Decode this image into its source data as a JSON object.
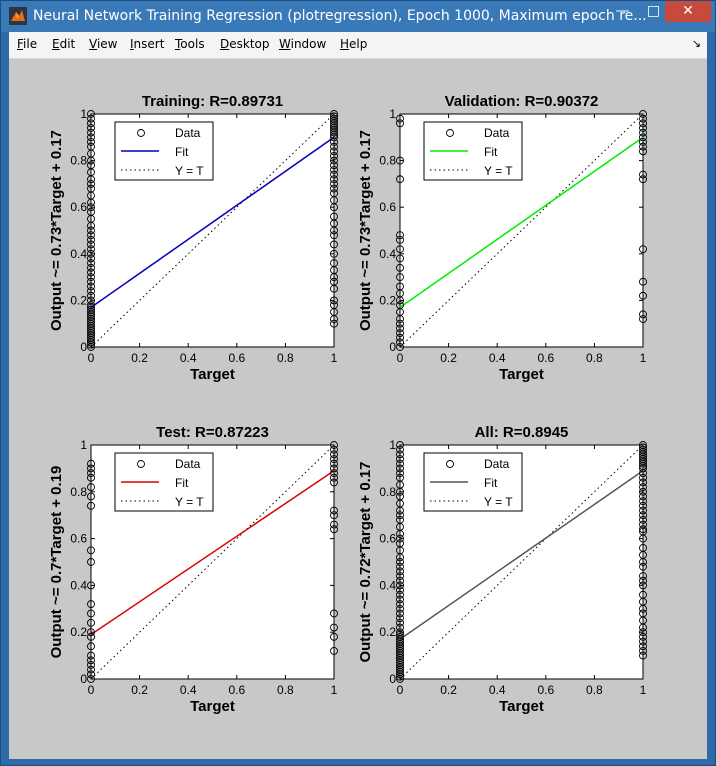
{
  "window": {
    "title": "Neural Network Training Regression (plotregression), Epoch 1000, Maximum epoch re...",
    "min_icon": "minimize-icon",
    "max_icon": "maximize-icon",
    "close_icon": "close-icon"
  },
  "menu": {
    "items": [
      {
        "label": "File",
        "key": "F",
        "rest": "ile"
      },
      {
        "label": "Edit",
        "key": "E",
        "rest": "dit"
      },
      {
        "label": "View",
        "key": "V",
        "rest": "iew"
      },
      {
        "label": "Insert",
        "key": "I",
        "rest": "nsert"
      },
      {
        "label": "Tools",
        "key": "T",
        "rest": "ools"
      },
      {
        "label": "Desktop",
        "key": "D",
        "rest": "esktop"
      },
      {
        "label": "Window",
        "key": "W",
        "rest": "indow"
      },
      {
        "label": "Help",
        "key": "H",
        "rest": "elp"
      }
    ]
  },
  "colors": {
    "training_fit": "#0000bf",
    "validation_fit": "#00ee00",
    "test_fit": "#dd0000",
    "all_fit": "#555555"
  },
  "chart_data": [
    {
      "type": "scatter",
      "title": "Training: R=0.89731",
      "xlabel": "Target",
      "ylabel": "Output ~= 0.73*Target + 0.17",
      "xlim": [
        0,
        1
      ],
      "ylim": [
        0,
        1
      ],
      "xticks": [
        "0",
        "0.2",
        "0.4",
        "0.6",
        "0.8",
        "1"
      ],
      "yticks": [
        "0",
        "0.2",
        "0.4",
        "0.6",
        "0.8",
        "1"
      ],
      "legend": [
        "Data",
        "Fit",
        "Y = T"
      ],
      "legend_position": "top-left",
      "fit_color": "#0000bf",
      "fit": {
        "slope": 0.73,
        "intercept": 0.17
      },
      "series": [
        {
          "x": 0,
          "y": [
            0.0,
            0.01,
            0.02,
            0.03,
            0.04,
            0.05,
            0.06,
            0.07,
            0.08,
            0.09,
            0.1,
            0.11,
            0.12,
            0.13,
            0.14,
            0.15,
            0.16,
            0.17,
            0.18,
            0.2,
            0.22,
            0.24,
            0.26,
            0.28,
            0.3,
            0.32,
            0.34,
            0.36,
            0.38,
            0.4,
            0.42,
            0.44,
            0.46,
            0.48,
            0.5,
            0.52,
            0.55,
            0.58,
            0.6,
            0.62,
            0.65,
            0.68,
            0.7,
            0.72,
            0.75,
            0.78,
            0.8,
            0.83,
            0.86,
            0.88,
            0.9,
            0.92,
            0.94,
            0.96,
            0.98,
            1.0
          ]
        },
        {
          "x": 1,
          "y": [
            0.1,
            0.12,
            0.15,
            0.18,
            0.2,
            0.25,
            0.28,
            0.3,
            0.33,
            0.36,
            0.4,
            0.44,
            0.48,
            0.5,
            0.53,
            0.56,
            0.6,
            0.63,
            0.66,
            0.68,
            0.7,
            0.72,
            0.74,
            0.76,
            0.78,
            0.8,
            0.82,
            0.84,
            0.86,
            0.88,
            0.9,
            0.91,
            0.92,
            0.93,
            0.94,
            0.95,
            0.96,
            0.97,
            0.98,
            0.99,
            1.0
          ]
        }
      ]
    },
    {
      "type": "scatter",
      "title": "Validation: R=0.90372",
      "xlabel": "Target",
      "ylabel": "Output ~= 0.73*Target + 0.17",
      "xlim": [
        0,
        1
      ],
      "ylim": [
        0,
        1
      ],
      "xticks": [
        "0",
        "0.2",
        "0.4",
        "0.6",
        "0.8",
        "1"
      ],
      "yticks": [
        "0",
        "0.2",
        "0.4",
        "0.6",
        "0.8",
        "1"
      ],
      "legend": [
        "Data",
        "Fit",
        "Y = T"
      ],
      "legend_position": "top-left",
      "fit_color": "#00ee00",
      "fit": {
        "slope": 0.73,
        "intercept": 0.17
      },
      "series": [
        {
          "x": 0,
          "y": [
            0.0,
            0.02,
            0.04,
            0.06,
            0.08,
            0.1,
            0.12,
            0.15,
            0.18,
            0.2,
            0.23,
            0.26,
            0.3,
            0.34,
            0.38,
            0.42,
            0.46,
            0.48,
            0.72,
            0.8,
            0.96,
            0.98
          ]
        },
        {
          "x": 1,
          "y": [
            0.12,
            0.14,
            0.22,
            0.28,
            0.42,
            0.72,
            0.74,
            0.84,
            0.86,
            0.88,
            0.9,
            0.92,
            0.94,
            0.96,
            0.98,
            1.0
          ]
        }
      ]
    },
    {
      "type": "scatter",
      "title": "Test: R=0.87223",
      "xlabel": "Target",
      "ylabel": "Output ~= 0.7*Target + 0.19",
      "xlim": [
        0,
        1
      ],
      "ylim": [
        0,
        1
      ],
      "xticks": [
        "0",
        "0.2",
        "0.4",
        "0.6",
        "0.8",
        "1"
      ],
      "yticks": [
        "0",
        "0.2",
        "0.4",
        "0.6",
        "0.8",
        "1"
      ],
      "legend": [
        "Data",
        "Fit",
        "Y = T"
      ],
      "legend_position": "top-left",
      "fit_color": "#dd0000",
      "fit": {
        "slope": 0.7,
        "intercept": 0.19
      },
      "series": [
        {
          "x": 0,
          "y": [
            0.0,
            0.02,
            0.04,
            0.06,
            0.08,
            0.1,
            0.14,
            0.18,
            0.2,
            0.24,
            0.28,
            0.32,
            0.4,
            0.5,
            0.55,
            0.74,
            0.78,
            0.82,
            0.86,
            0.88,
            0.9,
            0.92
          ]
        },
        {
          "x": 1,
          "y": [
            0.12,
            0.18,
            0.22,
            0.28,
            0.64,
            0.66,
            0.7,
            0.72,
            0.84,
            0.86,
            0.88,
            0.9,
            0.92,
            0.94,
            0.96,
            0.98,
            1.0
          ]
        }
      ]
    },
    {
      "type": "scatter",
      "title": "All: R=0.8945",
      "xlabel": "Target",
      "ylabel": "Output ~= 0.72*Target + 0.17",
      "xlim": [
        0,
        1
      ],
      "ylim": [
        0,
        1
      ],
      "xticks": [
        "0",
        "0.2",
        "0.4",
        "0.6",
        "0.8",
        "1"
      ],
      "yticks": [
        "0",
        "0.2",
        "0.4",
        "0.6",
        "0.8",
        "1"
      ],
      "legend": [
        "Data",
        "Fit",
        "Y = T"
      ],
      "legend_position": "top-left",
      "fit_color": "#555555",
      "fit": {
        "slope": 0.72,
        "intercept": 0.17
      },
      "series": [
        {
          "x": 0,
          "y": [
            0.0,
            0.01,
            0.02,
            0.03,
            0.04,
            0.05,
            0.06,
            0.07,
            0.08,
            0.09,
            0.1,
            0.11,
            0.12,
            0.13,
            0.14,
            0.15,
            0.16,
            0.17,
            0.18,
            0.19,
            0.2,
            0.22,
            0.24,
            0.26,
            0.28,
            0.3,
            0.32,
            0.34,
            0.36,
            0.38,
            0.4,
            0.42,
            0.44,
            0.46,
            0.48,
            0.5,
            0.52,
            0.55,
            0.58,
            0.6,
            0.62,
            0.65,
            0.68,
            0.7,
            0.72,
            0.75,
            0.78,
            0.8,
            0.83,
            0.86,
            0.88,
            0.9,
            0.92,
            0.94,
            0.96,
            0.98,
            1.0
          ]
        },
        {
          "x": 1,
          "y": [
            0.1,
            0.12,
            0.14,
            0.16,
            0.18,
            0.2,
            0.22,
            0.25,
            0.28,
            0.3,
            0.33,
            0.36,
            0.4,
            0.42,
            0.44,
            0.48,
            0.5,
            0.53,
            0.56,
            0.6,
            0.63,
            0.64,
            0.66,
            0.68,
            0.7,
            0.72,
            0.74,
            0.76,
            0.78,
            0.8,
            0.82,
            0.84,
            0.86,
            0.88,
            0.9,
            0.91,
            0.92,
            0.93,
            0.94,
            0.95,
            0.96,
            0.97,
            0.98,
            0.99,
            1.0
          ]
        }
      ]
    }
  ]
}
